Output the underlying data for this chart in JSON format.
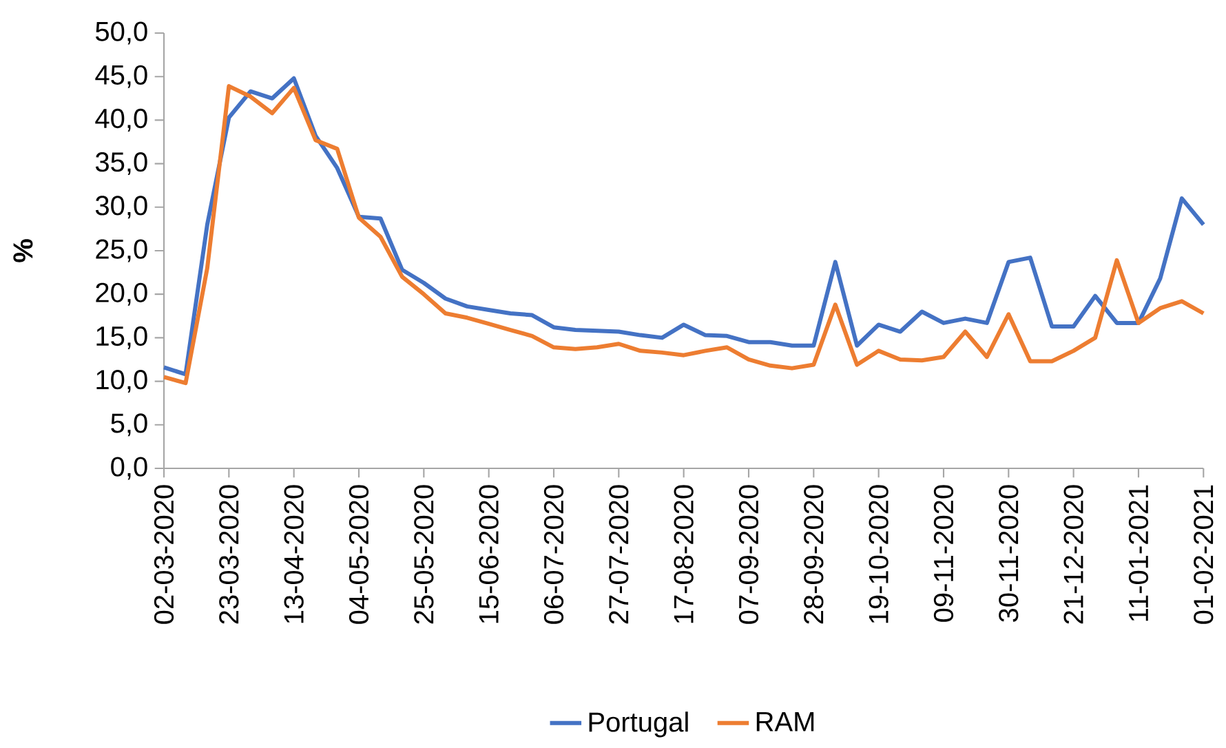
{
  "chart_data": {
    "type": "line",
    "ylabel": "%",
    "categories": [
      "02-03-2020",
      null,
      null,
      "23-03-2020",
      null,
      null,
      "13-04-2020",
      null,
      null,
      "04-05-2020",
      null,
      null,
      "25-05-2020",
      null,
      null,
      "15-06-2020",
      null,
      null,
      "06-07-2020",
      null,
      null,
      "27-07-2020",
      null,
      null,
      "17-08-2020",
      null,
      null,
      "07-09-2020",
      null,
      null,
      "28-09-2020",
      null,
      null,
      "19-10-2020",
      null,
      null,
      "09-11-2020",
      null,
      null,
      "30-11-2020",
      null,
      null,
      "21-12-2020",
      null,
      null,
      "11-01-2021",
      null,
      null,
      "01-02-2021"
    ],
    "series": [
      {
        "name": "Portugal",
        "color": "#4472c4",
        "values": [
          11.6,
          10.8,
          28.0,
          40.3,
          43.3,
          42.5,
          44.8,
          38.2,
          34.5,
          28.9,
          28.7,
          22.8,
          21.3,
          19.5,
          18.6,
          18.2,
          17.8,
          17.6,
          16.2,
          15.9,
          15.8,
          15.7,
          15.3,
          15.0,
          16.5,
          15.3,
          15.2,
          14.5,
          14.5,
          14.1,
          14.1,
          23.7,
          14.1,
          16.5,
          15.7,
          18.0,
          16.7,
          17.2,
          16.7,
          23.7,
          24.2,
          16.3,
          16.3,
          19.8,
          16.7,
          16.7,
          21.8,
          31.0,
          28.0
        ]
      },
      {
        "name": "RAM",
        "color": "#ed7d31",
        "values": [
          10.5,
          9.8,
          23.0,
          43.9,
          42.7,
          40.8,
          43.7,
          37.7,
          36.7,
          28.8,
          26.6,
          22.0,
          20.0,
          17.8,
          17.3,
          16.6,
          15.9,
          15.2,
          13.9,
          13.7,
          13.9,
          14.3,
          13.5,
          13.3,
          13.0,
          13.5,
          13.9,
          12.5,
          11.8,
          11.5,
          11.9,
          18.8,
          11.9,
          13.5,
          12.5,
          12.4,
          12.8,
          15.7,
          12.8,
          17.7,
          12.3,
          12.3,
          13.5,
          15.0,
          23.9,
          16.7,
          18.4,
          19.2,
          17.8
        ]
      }
    ],
    "ylim": [
      0,
      50
    ],
    "yticks": [
      {
        "value": 0,
        "label": "0,0"
      },
      {
        "value": 5,
        "label": "5,0"
      },
      {
        "value": 10,
        "label": "10,0"
      },
      {
        "value": 15,
        "label": "15,0"
      },
      {
        "value": 20,
        "label": "20,0"
      },
      {
        "value": 25,
        "label": "25,0"
      },
      {
        "value": 30,
        "label": "30,0"
      },
      {
        "value": 35,
        "label": "35,0"
      },
      {
        "value": 40,
        "label": "40,0"
      },
      {
        "value": 45,
        "label": "45,0"
      },
      {
        "value": 50,
        "label": "50,0"
      }
    ],
    "legend": "bottom"
  }
}
